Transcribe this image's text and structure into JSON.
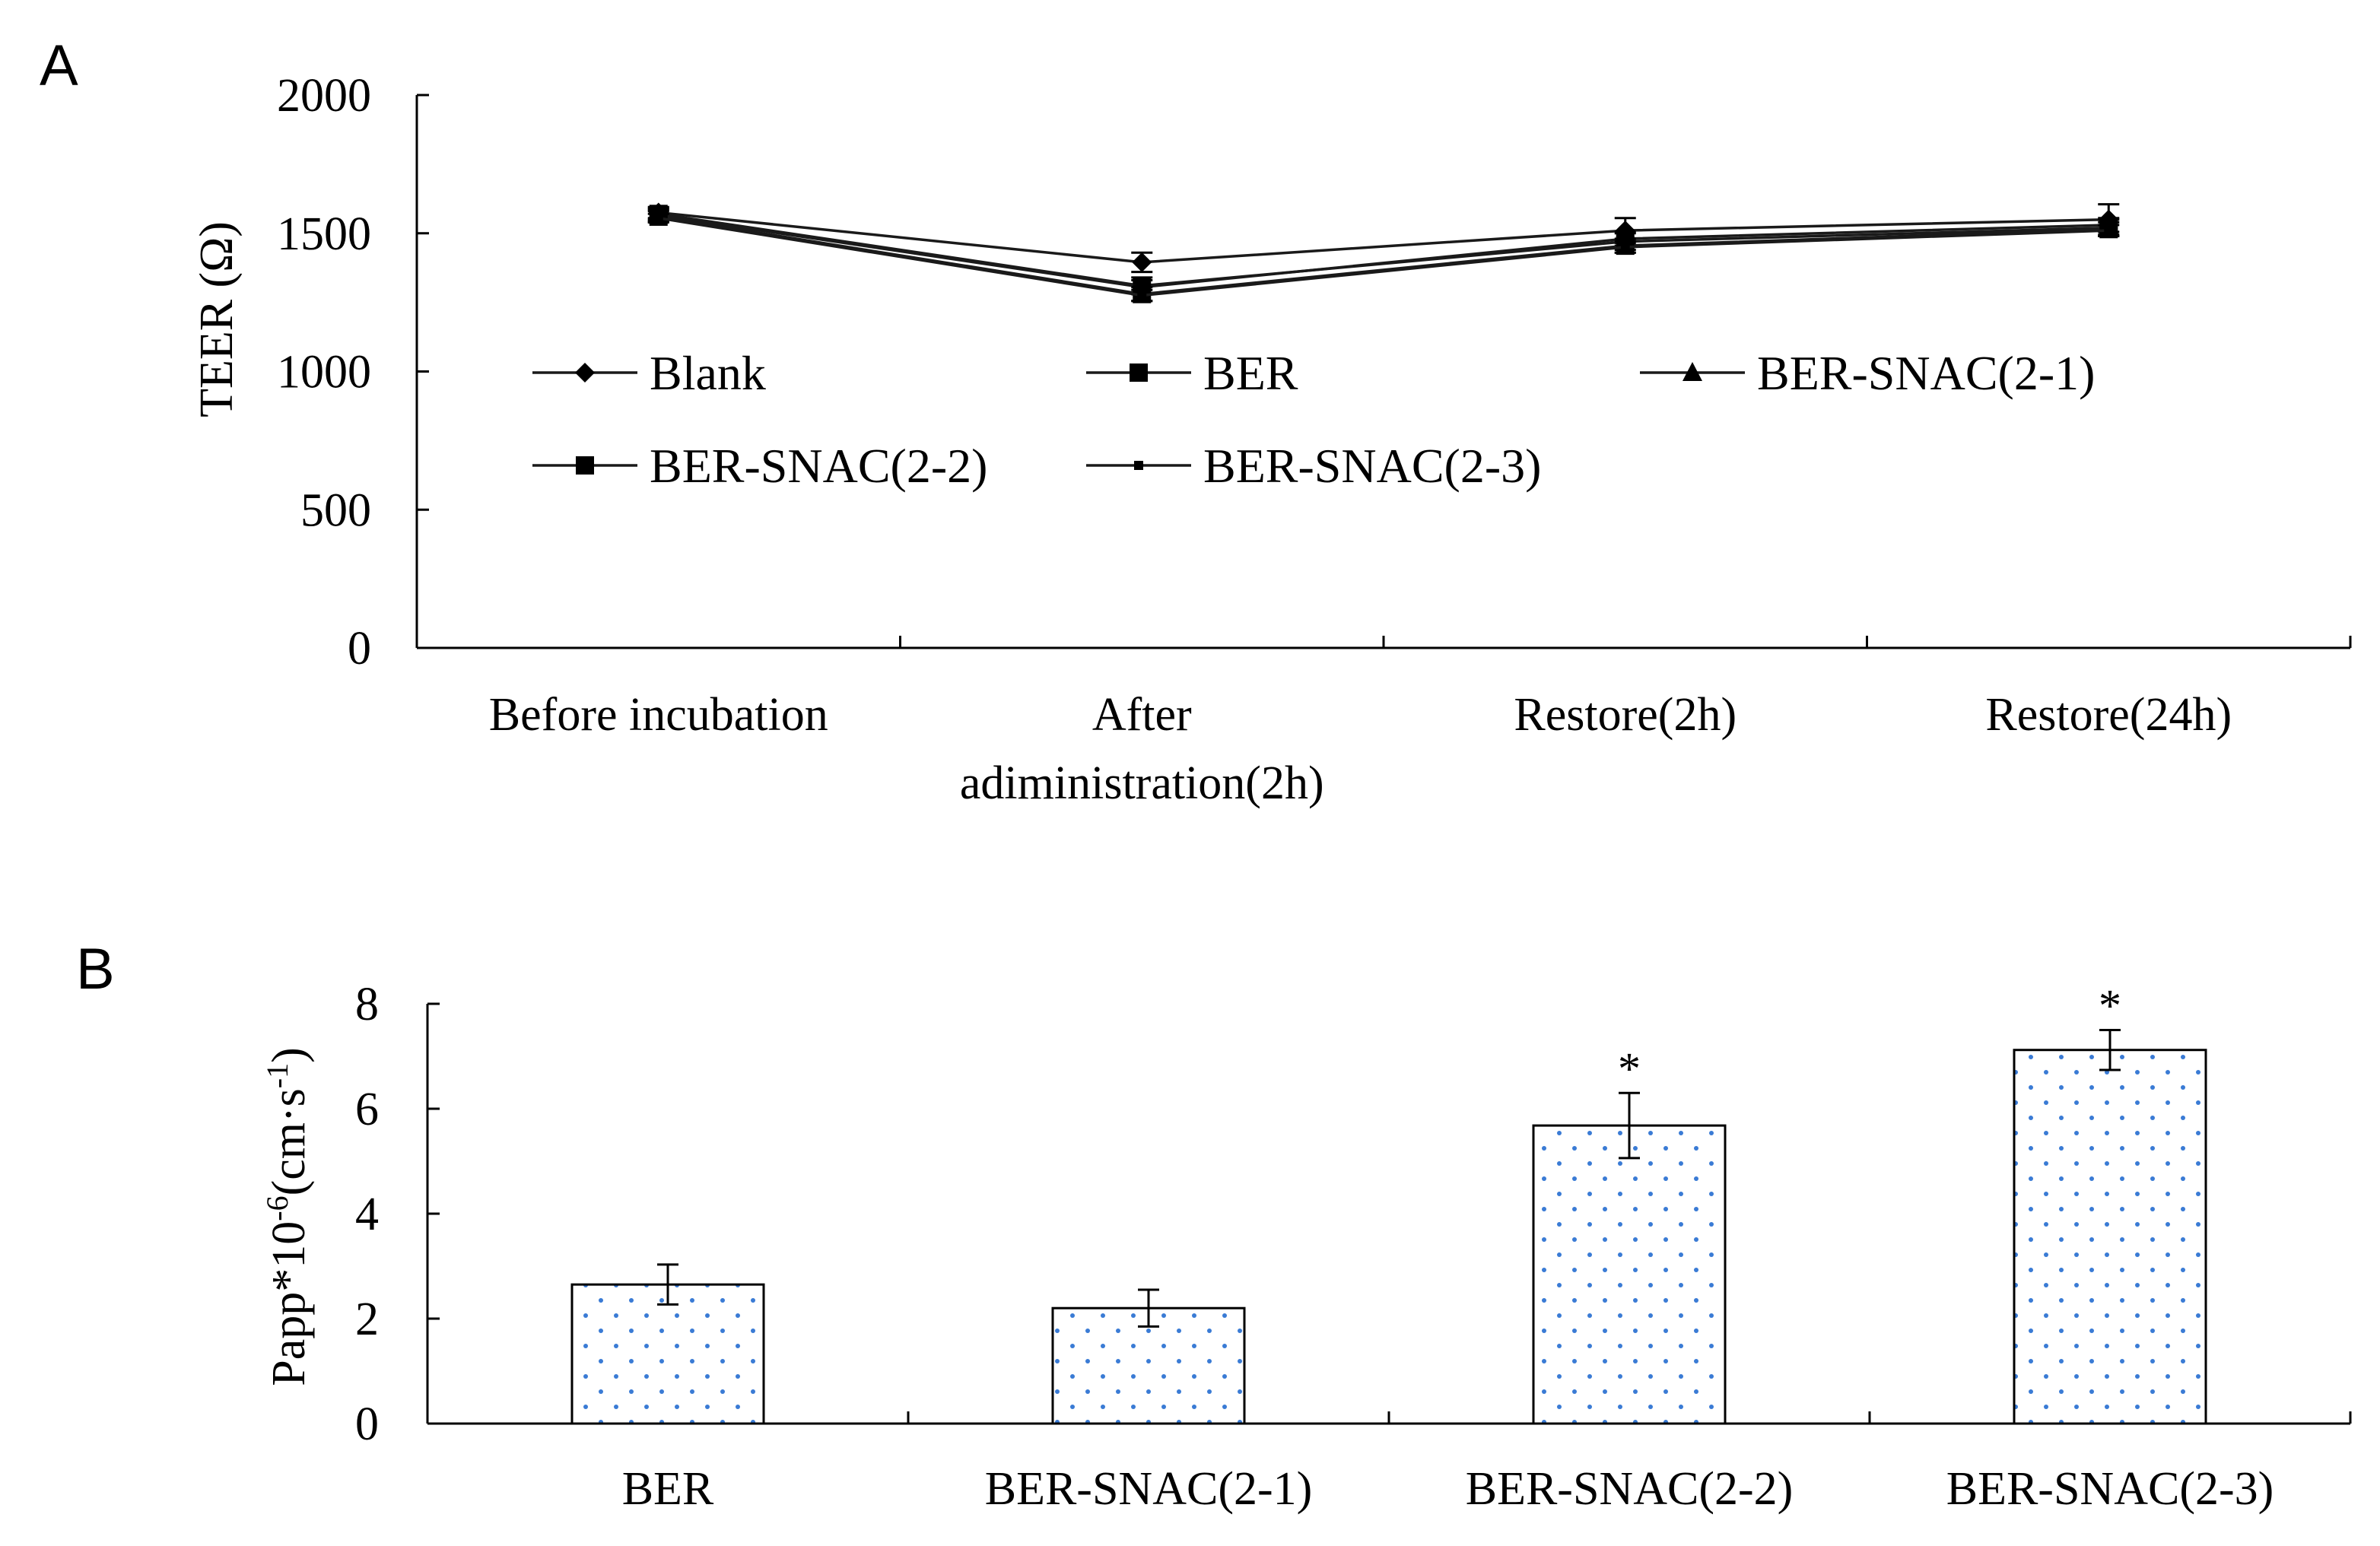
{
  "chart_data": [
    {
      "panel_label": "A",
      "type": "line",
      "ylabel": "TEER (Ω)",
      "ylim": [
        0,
        2000
      ],
      "yticks": [
        "0",
        "500",
        "1000",
        "1500",
        "2000"
      ],
      "categories": [
        "Before incubation",
        "After adiministration(2h)",
        "Restore(2h)",
        "Restore(24h)"
      ],
      "category_lines": [
        [
          "Before incubation"
        ],
        [
          "After",
          "adiministration(2h)"
        ],
        [
          "Restore(2h)"
        ],
        [
          "Restore(24h)"
        ]
      ],
      "legend_position": "inside",
      "series": [
        {
          "name": "Blank",
          "marker": "diamond",
          "values": [
            1575,
            1395,
            1510,
            1550
          ],
          "errors": [
            20,
            35,
            45,
            55
          ]
        },
        {
          "name": "BER",
          "marker": "square",
          "values": [
            1570,
            1310,
            1470,
            1520
          ],
          "errors": [
            20,
            30,
            30,
            30
          ]
        },
        {
          "name": "BER-SNAC(2-1)",
          "marker": "triangle",
          "values": [
            1565,
            1305,
            1480,
            1530
          ],
          "errors": [
            20,
            25,
            25,
            25
          ]
        },
        {
          "name": "BER-SNAC(2-2)",
          "marker": "square",
          "values": [
            1560,
            1280,
            1455,
            1515
          ],
          "errors": [
            20,
            25,
            25,
            25
          ]
        },
        {
          "name": "BER-SNAC(2-3)",
          "marker": "small",
          "values": [
            1555,
            1275,
            1450,
            1510
          ],
          "errors": [
            15,
            20,
            20,
            20
          ]
        }
      ]
    },
    {
      "panel_label": "B",
      "type": "bar",
      "ylabel": "Papp*10",
      "ylabel_sup1": "-6",
      "ylabel_unit": "(cm·s",
      "ylabel_sup2": "-1",
      "ylabel_close": ")",
      "ylim": [
        0,
        8
      ],
      "yticks": [
        "0",
        "2",
        "4",
        "6",
        "8"
      ],
      "categories": [
        "BER",
        "BER-SNAC(2-1)",
        "BER-SNAC(2-2)",
        "BER-SNAC(2-3)"
      ],
      "values": [
        2.65,
        2.2,
        5.68,
        7.12
      ],
      "errors": [
        0.38,
        0.35,
        0.62,
        0.38
      ],
      "significance": [
        "",
        "",
        "*",
        "*"
      ]
    }
  ],
  "colors": {
    "axis": "#000000",
    "line": "#1a1a1a",
    "bar_dots": "#3a7bd5",
    "bar_fill": "#ffffff"
  }
}
